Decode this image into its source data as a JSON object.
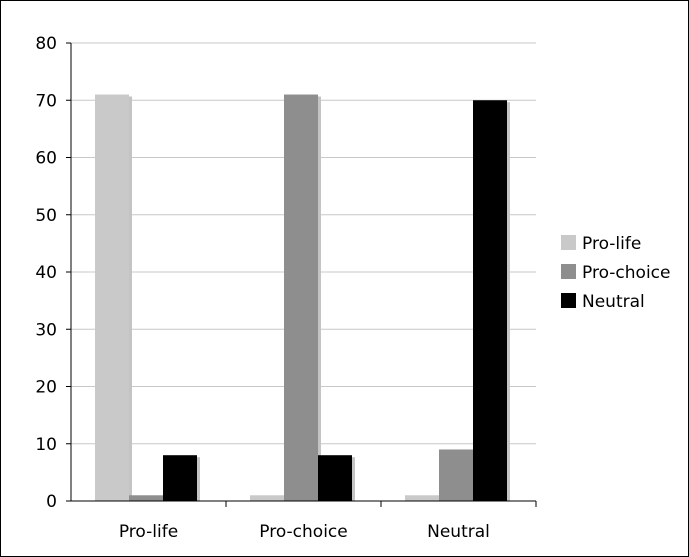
{
  "chart_data": {
    "type": "bar",
    "title": "",
    "xlabel": "",
    "ylabel": "",
    "categories": [
      "Pro-life",
      "Pro-choice",
      "Neutral"
    ],
    "series": [
      {
        "name": "Pro-life",
        "color": "#c9c9c9",
        "values": [
          71,
          1,
          1
        ]
      },
      {
        "name": "Pro-choice",
        "color": "#8e8e8e",
        "values": [
          1,
          71,
          9
        ]
      },
      {
        "name": "Neutral",
        "color": "#000000",
        "values": [
          8,
          8,
          70
        ]
      }
    ],
    "ylim": [
      0,
      80
    ],
    "yticks": [
      0,
      10,
      20,
      30,
      40,
      50,
      60,
      70,
      80
    ],
    "grid": true,
    "legend_position": "right",
    "colors": {
      "gridline": "#c8c8c8",
      "axis": "#000000",
      "shadow": "#c4c4c4"
    }
  }
}
